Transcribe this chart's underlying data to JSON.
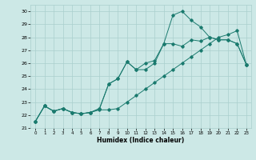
{
  "xlabel": "Humidex (Indice chaleur)",
  "xlim": [
    -0.5,
    23.5
  ],
  "ylim": [
    21,
    30.5
  ],
  "yticks": [
    21,
    22,
    23,
    24,
    25,
    26,
    27,
    28,
    29,
    30
  ],
  "xticks": [
    0,
    1,
    2,
    3,
    4,
    5,
    6,
    7,
    8,
    9,
    10,
    11,
    12,
    13,
    14,
    15,
    16,
    17,
    18,
    19,
    20,
    21,
    22,
    23
  ],
  "bg_color": "#cce8e6",
  "grid_color": "#aacfcd",
  "line_color": "#1a7a6e",
  "series": [
    {
      "x": [
        0,
        1,
        2,
        3,
        4,
        5,
        6,
        7,
        8,
        9,
        10,
        11,
        12,
        13,
        14,
        15,
        16,
        17,
        18,
        19,
        20,
        21,
        22,
        23
      ],
      "y": [
        21.5,
        22.7,
        22.3,
        22.5,
        22.2,
        22.1,
        22.2,
        22.4,
        22.4,
        22.5,
        23.0,
        23.5,
        24.0,
        24.5,
        25.0,
        25.5,
        26.0,
        26.5,
        27.0,
        27.5,
        28.0,
        28.2,
        28.5,
        25.9
      ]
    },
    {
      "x": [
        0,
        1,
        2,
        3,
        4,
        5,
        6,
        7,
        8,
        9,
        10,
        11,
        12,
        13,
        14,
        15,
        16,
        17,
        18,
        19,
        20,
        21,
        22,
        23
      ],
      "y": [
        21.5,
        22.7,
        22.3,
        22.5,
        22.2,
        22.1,
        22.2,
        22.5,
        24.4,
        24.8,
        26.1,
        25.5,
        26.0,
        26.2,
        27.5,
        27.5,
        27.3,
        27.8,
        27.7,
        28.0,
        27.8,
        27.8,
        27.5,
        25.9
      ]
    },
    {
      "x": [
        0,
        1,
        2,
        3,
        4,
        5,
        6,
        7,
        8,
        9,
        10,
        11,
        12,
        13,
        14,
        15,
        16,
        17,
        18,
        19,
        20,
        21,
        22,
        23
      ],
      "y": [
        21.5,
        22.7,
        22.3,
        22.5,
        22.2,
        22.1,
        22.2,
        22.5,
        24.4,
        24.8,
        26.1,
        25.5,
        25.5,
        26.0,
        27.5,
        29.7,
        30.0,
        29.3,
        28.8,
        28.0,
        27.8,
        27.8,
        27.5,
        25.9
      ]
    }
  ]
}
